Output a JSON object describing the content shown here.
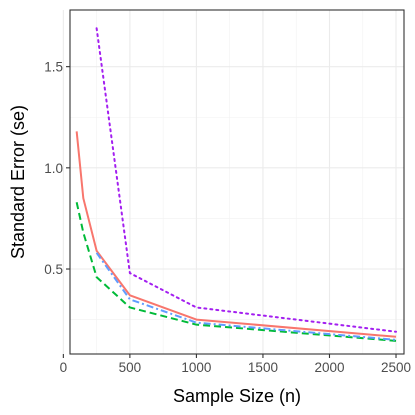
{
  "chart_data": {
    "type": "line",
    "title": "",
    "xlabel": "Sample Size (n)",
    "ylabel": "Standard Error (se)",
    "xlim": [
      50,
      2560
    ],
    "ylim": [
      0.08,
      1.78
    ],
    "xticks": [
      0,
      500,
      1000,
      1500,
      2000,
      2500
    ],
    "yticks": [
      0.5,
      1.0,
      1.5
    ],
    "xtick_labels": [
      "0",
      "500",
      "1000",
      "1500",
      "2000",
      "2500"
    ],
    "ytick_labels": [
      "0.5",
      "1.0",
      "1.5"
    ],
    "grid": true,
    "legend": "none",
    "series": [
      {
        "color": "#f8766d",
        "linestyle": "solid",
        "x": [
          100,
          150,
          250,
          500,
          1000,
          2500
        ],
        "y": [
          1.18,
          0.85,
          0.59,
          0.37,
          0.25,
          0.165
        ]
      },
      {
        "color": "#00ba38",
        "linestyle": "dashed",
        "x": [
          100,
          150,
          250,
          500,
          1000,
          2500
        ],
        "y": [
          0.83,
          0.68,
          0.46,
          0.31,
          0.225,
          0.145
        ]
      },
      {
        "color": "#619cff",
        "linestyle": "dashdot",
        "x": [
          250,
          500,
          1000,
          2500
        ],
        "y": [
          0.58,
          0.35,
          0.235,
          0.15
        ]
      },
      {
        "color": "#a31ff0",
        "linestyle": "dotted",
        "x": [
          250,
          500,
          1000,
          2500
        ],
        "y": [
          1.69,
          0.48,
          0.31,
          0.19
        ]
      }
    ]
  }
}
